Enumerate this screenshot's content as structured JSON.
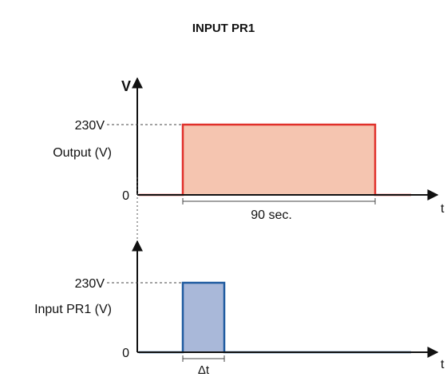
{
  "title": "INPUT PR1",
  "colors": {
    "axis": "#111111",
    "output_line": "#e0302a",
    "output_fill": "#f5c5b0",
    "input_line": "#1f5ba0",
    "input_fill": "#a9b8d9",
    "dashed": "#444444"
  },
  "output_chart": {
    "y_axis_symbol": "V",
    "x_axis_symbol": "t",
    "level_label": "230V",
    "zero_label": "0",
    "signal_label": "Output (V)",
    "duration_label": "90 sec."
  },
  "input_chart": {
    "y_axis_symbol": "",
    "x_axis_symbol": "t",
    "level_label": "230V",
    "zero_label": "0",
    "signal_label": "Input PR1 (V)",
    "duration_label": "Δt"
  }
}
